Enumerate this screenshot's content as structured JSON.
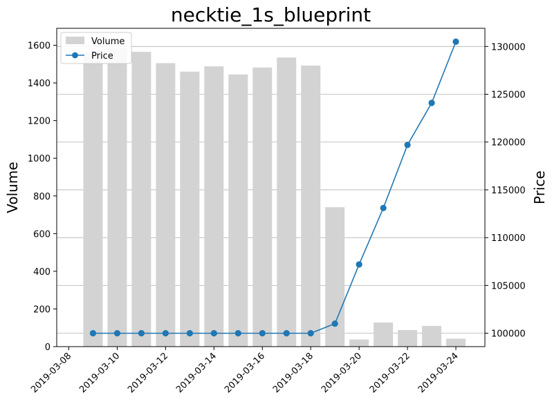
{
  "chart_data": {
    "type": "bar",
    "title": "necktie_1s_blueprint",
    "xlabel": "",
    "ylabel": "Volume",
    "y2label": "Price",
    "x": [
      "2019-03-09",
      "2019-03-10",
      "2019-03-11",
      "2019-03-12",
      "2019-03-13",
      "2019-03-14",
      "2019-03-15",
      "2019-03-16",
      "2019-03-17",
      "2019-03-18",
      "2019-03-19",
      "2019-03-20",
      "2019-03-21",
      "2019-03-22",
      "2019-03-23",
      "2019-03-24"
    ],
    "xticks": [
      "2019-03-08",
      "2019-03-10",
      "2019-03-12",
      "2019-03-14",
      "2019-03-16",
      "2019-03-18",
      "2019-03-20",
      "2019-03-22",
      "2019-03-24"
    ],
    "yticks": [
      "0",
      "200",
      "400",
      "600",
      "800",
      "1000",
      "1200",
      "1400",
      "1600"
    ],
    "y2ticks": [
      "100000",
      "105000",
      "110000",
      "115000",
      "120000",
      "125000",
      "130000"
    ],
    "ylim": [
      0,
      1690
    ],
    "y2lim": [
      98600,
      131900
    ],
    "series": [
      {
        "name": "Volume",
        "type": "bar",
        "axis": "left",
        "color": "#d3d3d3",
        "values": [
          1560,
          1585,
          1565,
          1505,
          1460,
          1488,
          1445,
          1482,
          1535,
          1492,
          740,
          38,
          128,
          88,
          110,
          42
        ]
      },
      {
        "name": "Price",
        "type": "line",
        "axis": "right",
        "color": "#1f77b4",
        "marker": "circle",
        "values": [
          100000,
          100000,
          100000,
          100000,
          100000,
          100000,
          100000,
          100000,
          100000,
          100000,
          101000,
          107200,
          113100,
          119700,
          124100,
          130500
        ]
      }
    ],
    "grid": "horizontal, right axis",
    "legend": "top-left"
  }
}
